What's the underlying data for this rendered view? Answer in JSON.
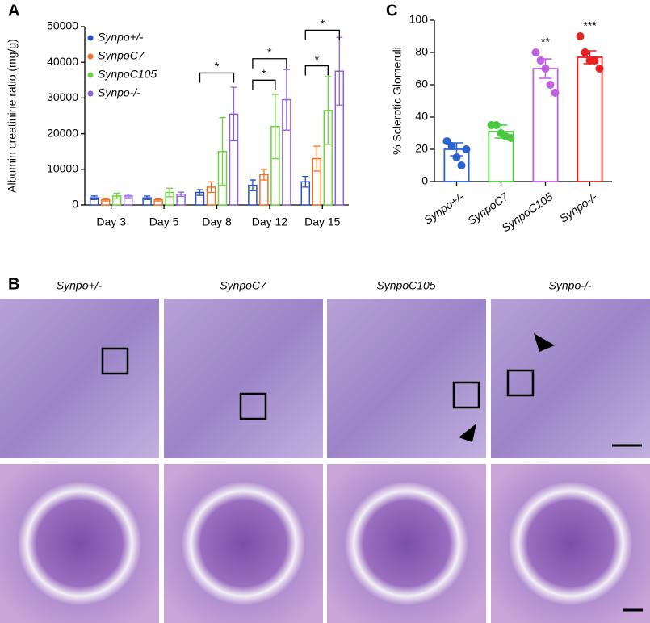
{
  "chart_data": [
    {
      "type": "bar",
      "label": "A",
      "ylabel": "Albumin creatinine ratio (mg/g)",
      "categories": [
        "Day 3",
        "Day 5",
        "Day 8",
        "Day 12",
        "Day 15"
      ],
      "ylim": [
        0,
        50000
      ],
      "yticks": [
        0,
        10000,
        20000,
        30000,
        40000,
        50000
      ],
      "series": [
        {
          "name": "Synpo+/-",
          "color": "#2850c8",
          "values": [
            2000,
            2000,
            3500,
            5500,
            6500
          ],
          "errors": [
            500,
            500,
            800,
            1500,
            1500
          ]
        },
        {
          "name": "SynpoC7",
          "color": "#f07020",
          "values": [
            1500,
            1500,
            5000,
            8500,
            13000
          ],
          "errors": [
            400,
            400,
            1500,
            1500,
            3500
          ]
        },
        {
          "name": "SynpoC105",
          "color": "#6cd43c",
          "values": [
            2500,
            3500,
            15000,
            22000,
            26500
          ],
          "errors": [
            800,
            1200,
            9500,
            9000,
            9500
          ]
        },
        {
          "name": "Synpo-/-",
          "color": "#9060d8",
          "values": [
            2500,
            3000,
            25500,
            29500,
            37500
          ],
          "errors": [
            500,
            600,
            7500,
            8500,
            9500
          ]
        }
      ],
      "annotations": [
        {
          "text": "*",
          "category": "Day 8",
          "from": "Synpo+/-",
          "to": "Synpo-/-",
          "y": 37000
        },
        {
          "text": "*",
          "category": "Day 12",
          "from": "Synpo+/-",
          "to": "SynpoC105",
          "y": 35000
        },
        {
          "text": "*",
          "category": "Day 12",
          "from": "Synpo+/-",
          "to": "Synpo-/-",
          "y": 41000
        },
        {
          "text": "*",
          "category": "Day 15",
          "from": "Synpo+/-",
          "to": "SynpoC105",
          "y": 39000
        },
        {
          "text": "*",
          "category": "Day 15",
          "from": "Synpo+/-",
          "to": "Synpo-/-",
          "y": 49000
        }
      ]
    },
    {
      "type": "bar",
      "label": "C",
      "ylabel": "% Sclerotic Glomeruli",
      "categories": [
        "Synpo+/-",
        "SynpoC7",
        "SynpoC105",
        "Synpo-/-"
      ],
      "colors": [
        "#2a62d0",
        "#4cc840",
        "#c060e0",
        "#e82020"
      ],
      "values": [
        20,
        31,
        70,
        77
      ],
      "errors": [
        4,
        4,
        6,
        4
      ],
      "points": [
        [
          25,
          22,
          15,
          10,
          20
        ],
        [
          35,
          35,
          30,
          28,
          27
        ],
        [
          80,
          75,
          70,
          60,
          55
        ],
        [
          90,
          80,
          75,
          75,
          70
        ]
      ],
      "ylim": [
        0,
        100
      ],
      "yticks": [
        0,
        20,
        40,
        60,
        80,
        100
      ],
      "annotations": [
        {
          "text": "**",
          "category": "SynpoC105"
        },
        {
          "text": "***",
          "category": "Synpo-/-"
        }
      ]
    }
  ],
  "image_panel": {
    "label": "B",
    "columns": [
      "Synpo+/-",
      "SynpoC7",
      "SynpoC105",
      "Synpo-/-"
    ]
  }
}
